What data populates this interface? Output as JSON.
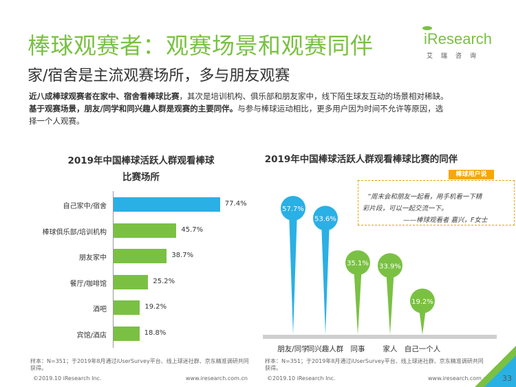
{
  "title": "棒球观赛者：观赛场景和观赛同伴",
  "subtitle": "家/宿舍是主流观赛场所，多与朋友观赛",
  "logo": {
    "text": "iResearch",
    "subtext": "艾瑞咨询"
  },
  "description": {
    "line1_bold": "近八成棒球观赛者在家中、宿舍看棒球比赛",
    "line1_rest": "，其次是培训机构、俱乐部和朋友家中，线下陌生球友互动的场景相对稀缺。",
    "line2_bold": "基于观赛场景，朋友/同学和同兴趣人群是观赛的主要同伴。",
    "line2_rest": "与参与棒球运动相比，更多用户因为时间不允许等原因，选",
    "line3": "择一个人观赛。"
  },
  "chart_data": [
    {
      "type": "bar",
      "orientation": "horizontal",
      "title_line1": "2019年中国棒球活跃人群观看棒球",
      "title_line2": "比赛场所",
      "categories": [
        "自己家中/宿舍",
        "棒球俱乐部/培训机构",
        "朋友家中",
        "餐厅/咖啡馆",
        "酒吧",
        "宾馆/酒店"
      ],
      "values": [
        77.4,
        45.7,
        38.7,
        25.2,
        19.2,
        18.8
      ],
      "value_labels": [
        "77.4%",
        "45.7%",
        "38.7%",
        "25.2%",
        "19.2%",
        "18.8%"
      ],
      "xlim": [
        0,
        100
      ],
      "colors": [
        "#2ab0e4",
        "#7ac143",
        "#7ac143",
        "#7ac143",
        "#7ac143",
        "#7ac143"
      ]
    },
    {
      "type": "bar",
      "style": "lollipop-spike",
      "title": "2019年中国棒球活跃人群观看棒球比赛的同伴",
      "categories": [
        "朋友/同学",
        "同兴趣人群",
        "同事",
        "家人",
        "自己一个人"
      ],
      "values": [
        57.7,
        53.6,
        35.1,
        33.9,
        19.2
      ],
      "value_labels": [
        "57.7%",
        "53.6%",
        "35.1%",
        "33.9%",
        "19.2%"
      ],
      "ylim": [
        0,
        65
      ],
      "colors": [
        "#2ab0e4",
        "#2ab0e4",
        "#7ac143",
        "#7ac143",
        "#7ac143"
      ]
    }
  ],
  "quote": {
    "tag": "棒球用户说",
    "line1": "“周末会和朋友一起看，用手机看一下精",
    "line2": "彩片段，可以一起交流一下。",
    "line3": "——棒球观看者 嘉兴，F女士"
  },
  "footnotes": {
    "left_line1": "样本：N=351；于2019年8月通过iUserSurvey平台、线上球迷社群、京东精准调研共同",
    "left_line2": "获得。",
    "right_line1": "样本：N=351；于2019年8月通过iUserSurvey平台、线上球迷社群、京东精准调研共同",
    "right_line2": "获得。"
  },
  "footer": {
    "copyright_left": "©2019.10 iResearch Inc.",
    "url_left": "www.iresearch.com.cn",
    "copyright_right": "©2019.10 iResearch Inc.",
    "url_right": "www.iresearch.com.cn",
    "page": "33"
  }
}
